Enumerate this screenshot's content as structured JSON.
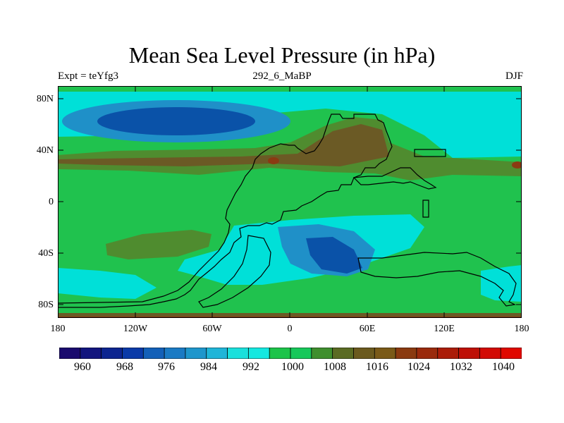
{
  "figure": {
    "title": "Mean Sea Level Pressure (in hPa)",
    "experiment": "Expt = teYfg3",
    "period": "292_6_MaBP",
    "season": "DJF"
  },
  "axes": {
    "y_ticks": [
      "80N",
      "40N",
      "0",
      "40S",
      "80S"
    ],
    "x_ticks": [
      "180",
      "120W",
      "60W",
      "0",
      "60E",
      "120E",
      "180"
    ]
  },
  "colorbar": {
    "labels": [
      "960",
      "968",
      "976",
      "984",
      "992",
      "1000",
      "1008",
      "1016",
      "1024",
      "1032",
      "1040"
    ],
    "colors": [
      "#1a0a6e",
      "#12157e",
      "#0d2590",
      "#0a3aa8",
      "#1360b8",
      "#1a7ac4",
      "#1e96cc",
      "#1fb5d8",
      "#1ae0dc",
      "#14e8e0",
      "#1cc44a",
      "#17c85a",
      "#3f8f2e",
      "#5b6b23",
      "#6b5a1e",
      "#7a5a18",
      "#8a3a10",
      "#9a2a0c",
      "#ab1c08",
      "#be1006",
      "#d20a04",
      "#e00800"
    ]
  },
  "legend_colors": {
    "low_deep": "#0a52a8",
    "low": "#1f90c8",
    "mid_low": "#00e0d8",
    "mid": "#20c24e",
    "mid_high": "#4f8c2f",
    "high": "#6b5a25",
    "very_high": "#8a3a12",
    "outline": "#000000"
  }
}
